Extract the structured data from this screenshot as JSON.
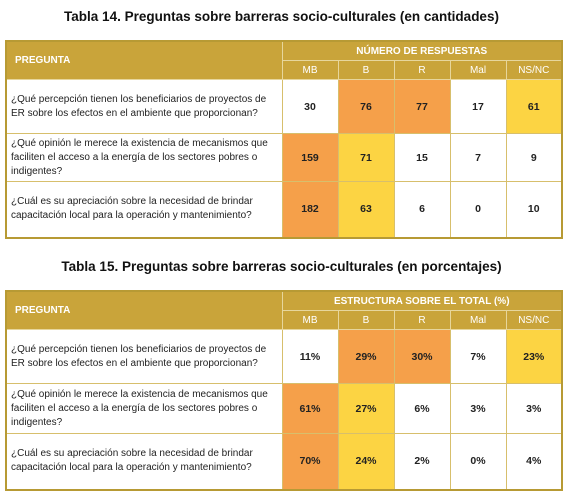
{
  "tables": [
    {
      "title": "Tabla 14. Preguntas sobre barreras socio-culturales (en cantidades)",
      "question_header": "Pregunta",
      "group_header": "Número de Respuestas",
      "columns": [
        "MB",
        "B",
        "R",
        "Mal",
        "NS/NC"
      ],
      "rows": [
        {
          "question": "¿Qué percepción tienen los beneficiarios  de proyectos de ER sobre los efectos en el ambiente que proporcionan?",
          "values": [
            30,
            76,
            77,
            17,
            61
          ],
          "fills": [
            "#ffffff",
            "#f5a04a",
            "#f5a04a",
            "#ffffff",
            "#fcd443"
          ]
        },
        {
          "question": "¿Qué opinión le merece la existencia de mecanismos que faciliten el acceso a la energía de los sectores pobres o indigentes?",
          "values": [
            159,
            71,
            15,
            7,
            9
          ],
          "fills": [
            "#f5a04a",
            "#fcd443",
            "#ffffff",
            "#ffffff",
            "#ffffff"
          ]
        },
        {
          "question": "¿Cuál es su apreciación sobre la necesidad de brindar capacitación local para la operación y mantenimiento?",
          "values": [
            182,
            63,
            6,
            0,
            10
          ],
          "fills": [
            "#f5a04a",
            "#fcd443",
            "#ffffff",
            "#ffffff",
            "#ffffff"
          ]
        }
      ]
    },
    {
      "title": "Tabla 15. Preguntas sobre barreras socio-culturales (en porcentajes)",
      "question_header": "Pregunta",
      "group_header": "Estructura sobre el total (%)",
      "columns": [
        "MB",
        "B",
        "R",
        "Mal",
        "NS/NC"
      ],
      "rows": [
        {
          "question": "¿Qué percepción tienen los beneficiarios  de proyectos de ER sobre los efectos en el ambiente que proporcionan?",
          "values": [
            "11%",
            "29%",
            "30%",
            "7%",
            "23%"
          ],
          "fills": [
            "#ffffff",
            "#f5a04a",
            "#f5a04a",
            "#ffffff",
            "#fcd443"
          ]
        },
        {
          "question": "¿Qué opinión le merece la existencia de mecanismos que faciliten el acceso a la energía de los sectores pobres o indigentes?",
          "values": [
            "61%",
            "27%",
            "6%",
            "3%",
            "3%"
          ],
          "fills": [
            "#f5a04a",
            "#fcd443",
            "#ffffff",
            "#ffffff",
            "#ffffff"
          ]
        },
        {
          "question": "¿Cuál es su apreciación sobre la necesidad de brindar capacitación local para la operación y mantenimiento?",
          "values": [
            "70%",
            "24%",
            "2%",
            "0%",
            "4%"
          ],
          "fills": [
            "#f5a04a",
            "#fcd443",
            "#ffffff",
            "#ffffff",
            "#ffffff"
          ]
        }
      ]
    }
  ]
}
